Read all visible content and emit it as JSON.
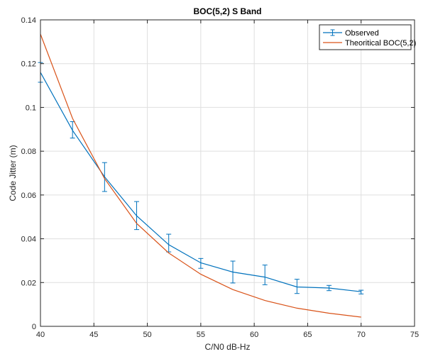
{
  "chart_data": {
    "type": "line",
    "title": "BOC(5,2) S Band",
    "xlabel": "C/N0 dB-Hz",
    "ylabel": "Code Jitter (m)",
    "xlim": [
      40,
      75
    ],
    "ylim": [
      0,
      0.14
    ],
    "xticks": [
      40,
      45,
      50,
      55,
      60,
      65,
      70,
      75
    ],
    "xtick_labels": [
      "40",
      "45",
      "50",
      "55",
      "60",
      "65",
      "70",
      "75"
    ],
    "yticks": [
      0,
      0.02,
      0.04,
      0.06,
      0.08,
      0.1,
      0.12,
      0.14
    ],
    "ytick_labels": [
      "0",
      "0.02",
      "0.04",
      "0.06",
      "0.08",
      "0.1",
      "0.12",
      "0.14"
    ],
    "grid": true,
    "legend_position": "top-right",
    "series": [
      {
        "name": "Observed",
        "color": "#0072BD",
        "style": "errorbar",
        "x": [
          40,
          43,
          46,
          49,
          52,
          55,
          58,
          61,
          64,
          67,
          70
        ],
        "y": [
          0.116,
          0.0895,
          0.0683,
          0.0505,
          0.0373,
          0.029,
          0.0248,
          0.0225,
          0.018,
          0.0175,
          0.0158
        ],
        "err_low": [
          0.0045,
          0.0035,
          0.0067,
          0.0063,
          0.0033,
          0.0025,
          0.005,
          0.0035,
          0.003,
          0.0012,
          0.001
        ],
        "err_high": [
          0.0045,
          0.004,
          0.0065,
          0.0065,
          0.0048,
          0.002,
          0.005,
          0.0055,
          0.0035,
          0.0012,
          0.0007
        ]
      },
      {
        "name": "Theoritical BOC(5,2)",
        "color": "#D95319",
        "style": "line",
        "x": [
          40,
          43,
          46,
          49,
          52,
          55,
          58,
          61,
          64,
          67,
          70
        ],
        "y": [
          0.1335,
          0.095,
          0.0675,
          0.047,
          0.0335,
          0.0238,
          0.0168,
          0.0118,
          0.0083,
          0.006,
          0.0042
        ]
      }
    ]
  }
}
